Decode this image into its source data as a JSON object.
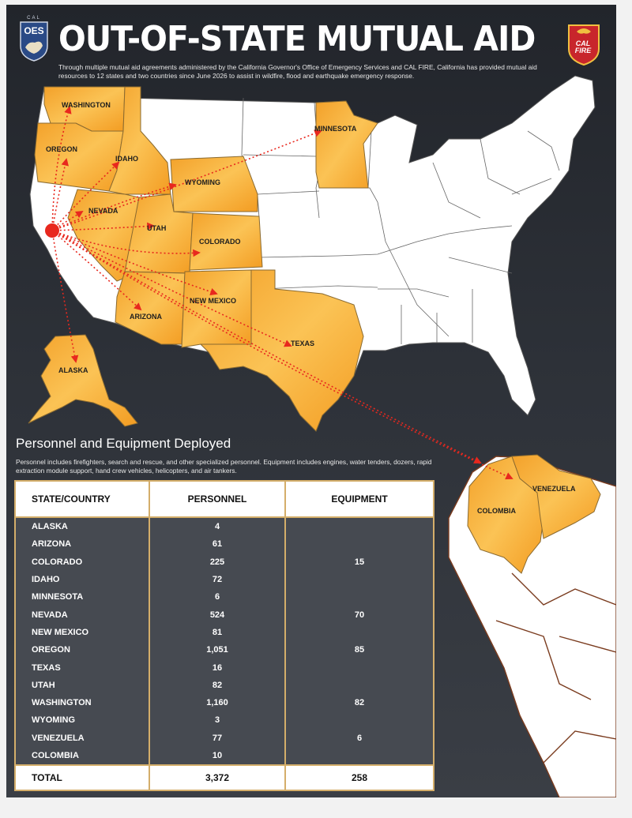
{
  "header": {
    "title": "OUT-OF-STATE MUTUAL AID",
    "subtitle": "Through multiple mutual aid agreements administered by the California Governor's Office of Emergency Services and CAL FIRE, California has provided mutual aid resources to 12 states and two countries since June 2026 to assist in wildfire, flood and earthquake emergency response.",
    "logo_left_text": "OES",
    "logo_left_tag": "CAL",
    "logo_right_text_1": "CAL",
    "logo_right_text_2": "FIRE"
  },
  "map": {
    "labels": [
      "WASHINGTON",
      "OREGON",
      "IDAHO",
      "MINNESOTA",
      "WYOMING",
      "NEVADA",
      "UTAH",
      "COLORADO",
      "NEW MEXICO",
      "ARIZONA",
      "TEXAS",
      "ALASKA",
      "VENEZUELA",
      "COLOMBIA"
    ],
    "colors": {
      "highlight": "#f5a623",
      "highlight_light": "#fbc85a",
      "base": "#ffffff",
      "border": "#555555",
      "arrow": "#e8281e",
      "sa_border": "#7a3b1e"
    }
  },
  "section": {
    "title": "Personnel and Equipment Deployed",
    "description": "Personnel includes firefighters, search and rescue, and other specialized personnel. Equipment includes engines, water tenders, dozers, rapid extraction module support, hand crew vehicles, helicopters, and air tankers."
  },
  "table": {
    "headers": [
      "STATE/COUNTRY",
      "PERSONNEL",
      "EQUIPMENT"
    ],
    "rows": [
      {
        "name": "ALASKA",
        "personnel": "4",
        "equipment": ""
      },
      {
        "name": "ARIZONA",
        "personnel": "61",
        "equipment": ""
      },
      {
        "name": "COLORADO",
        "personnel": "225",
        "equipment": "15"
      },
      {
        "name": "IDAHO",
        "personnel": "72",
        "equipment": ""
      },
      {
        "name": "MINNESOTA",
        "personnel": "6",
        "equipment": ""
      },
      {
        "name": "NEVADA",
        "personnel": "524",
        "equipment": "70"
      },
      {
        "name": "NEW MEXICO",
        "personnel": "81",
        "equipment": ""
      },
      {
        "name": "OREGON",
        "personnel": "1,051",
        "equipment": "85"
      },
      {
        "name": "TEXAS",
        "personnel": "16",
        "equipment": ""
      },
      {
        "name": "UTAH",
        "personnel": "82",
        "equipment": ""
      },
      {
        "name": "WASHINGTON",
        "personnel": "1,160",
        "equipment": "82"
      },
      {
        "name": "WYOMING",
        "personnel": "3",
        "equipment": ""
      },
      {
        "name": "VENEZUELA",
        "personnel": "77",
        "equipment": "6"
      },
      {
        "name": "COLOMBIA",
        "personnel": "10",
        "equipment": ""
      }
    ],
    "total": {
      "name": "TOTAL",
      "personnel": "3,372",
      "equipment": "258"
    }
  }
}
